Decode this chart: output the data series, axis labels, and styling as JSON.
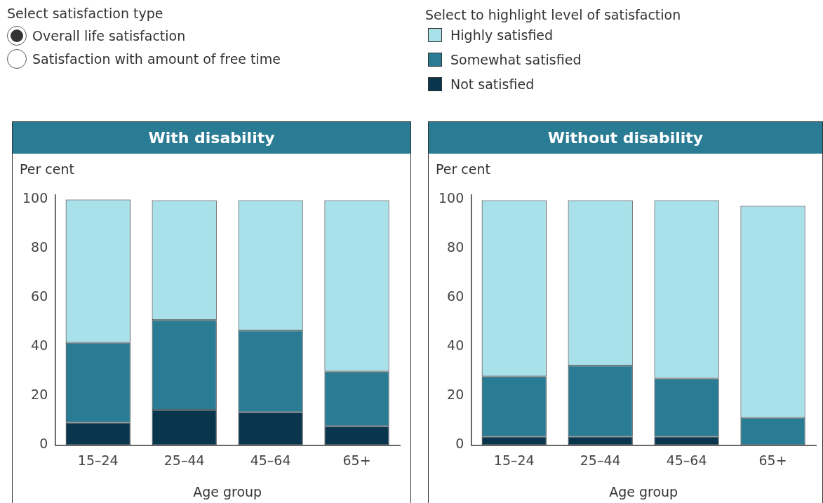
{
  "chart_data": [
    {
      "type": "bar",
      "title": "With disability",
      "xlabel": "Age group",
      "ylabel": "Per cent",
      "legend_title": "Select to highlight level of satisfaction",
      "legend": "top",
      "stacked": true,
      "annotations": [
        "Select satisfaction type",
        "Overall life satisfaction",
        "Satisfaction with amount of free time"
      ],
      "categories": [
        "15–24",
        "25–44",
        "45–64",
        "65+"
      ],
      "series": [
        {
          "name": "Not satisfied",
          "color": "#0a364d",
          "values": [
            9.1,
            14.3,
            13.4,
            7.7
          ]
        },
        {
          "name": "Somewhat satisfied",
          "color": "#2a7b94",
          "values": [
            32.6,
            36.6,
            33.2,
            22.3
          ]
        },
        {
          "name": "Highly satisfied",
          "color": "#a8e1ea",
          "values": [
            58.3,
            48.8,
            53.1,
            69.7
          ]
        }
      ],
      "ylim": [
        0,
        102
      ],
      "yticks": [
        0,
        20,
        40,
        60,
        80,
        100
      ],
      "grid": false
    },
    {
      "type": "bar",
      "title": "Without disability",
      "xlabel": "Age group",
      "ylabel": "Per cent",
      "stacked": true,
      "categories": [
        "15–24",
        "25–44",
        "45–64",
        "65+"
      ],
      "series": [
        {
          "color": "#0a364d",
          "values": [
            3.4,
            3.4,
            3.4,
            null
          ]
        },
        {
          "color": "#2a7b94",
          "values": [
            24.6,
            28.9,
            23.7,
            11.1
          ]
        },
        {
          "color": "#a8e1ea",
          "values": [
            71.7,
            67.4,
            72.6,
            86.3
          ]
        }
      ],
      "ylim": [
        0,
        102
      ],
      "yticks": [
        0,
        20,
        40,
        60,
        80,
        100
      ],
      "grid": false
    }
  ]
}
